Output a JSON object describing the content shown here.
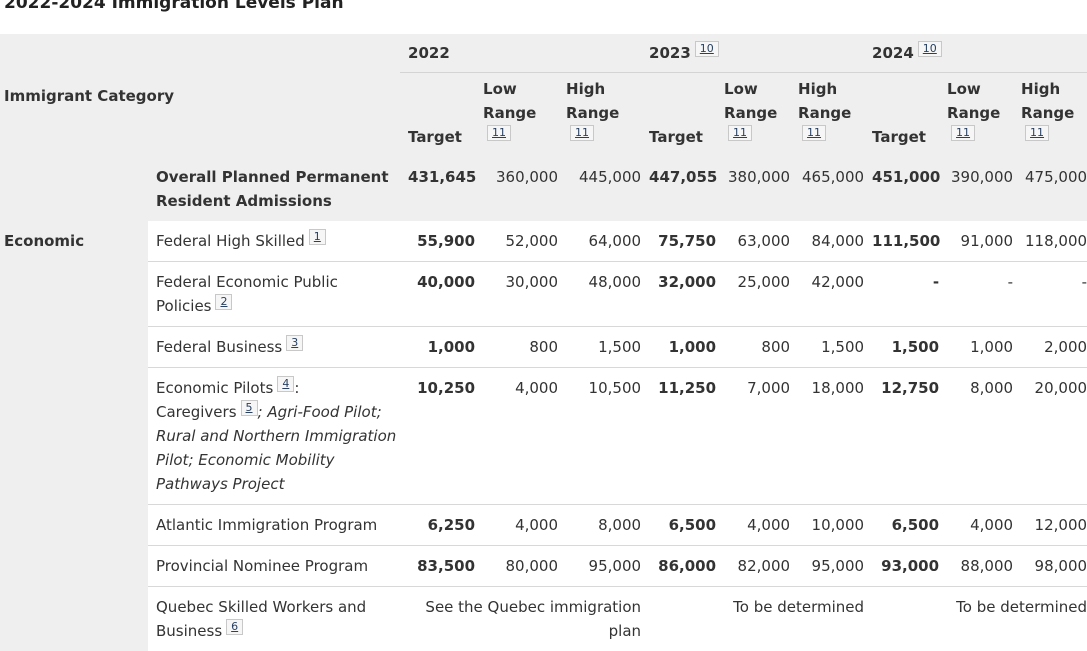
{
  "title": "2022-2024 Immigration Levels Plan",
  "header": {
    "category_label": "Immigrant Category",
    "years": [
      {
        "year": "2022",
        "ref": ""
      },
      {
        "year": "2023",
        "ref": "10"
      },
      {
        "year": "2024",
        "ref": "10"
      }
    ],
    "target_label": "Target",
    "low_label": "Low Range",
    "high_label": "High Range",
    "range_ref": "11"
  },
  "overall": {
    "label": "Overall Planned Permanent Resident Admissions",
    "values": [
      "431,645",
      "360,000",
      "445,000",
      "447,055",
      "380,000",
      "465,000",
      "451,000",
      "390,000",
      "475,000"
    ]
  },
  "category": "Economic",
  "rows": [
    {
      "label": "Federal High Skilled",
      "ref": "1",
      "values": [
        "55,900",
        "52,000",
        "64,000",
        "75,750",
        "63,000",
        "84,000",
        "111,500",
        "91,000",
        "118,000"
      ]
    },
    {
      "label_a": "Federal Economic Public",
      "label_b": "Policies",
      "ref": "2",
      "values": [
        "40,000",
        "30,000",
        "48,000",
        "32,000",
        "25,000",
        "42,000",
        "-",
        "-",
        "-"
      ]
    },
    {
      "label": "Federal Business",
      "ref": "3",
      "values": [
        "1,000",
        "800",
        "1,500",
        "1,000",
        "800",
        "1,500",
        "1,500",
        "1,000",
        "2,000"
      ]
    },
    {
      "label_a": "Economic Pilots",
      "ref_a": "4",
      "label_b": "Caregivers",
      "ref_b": "5",
      "italic": "; Agri-Food Pilot; Rural and Northern Immigration Pilot; Economic Mobility Pathways Project",
      "values": [
        "10,250",
        "4,000",
        "10,500",
        "11,250",
        "7,000",
        "18,000",
        "12,750",
        "8,000",
        "20,000"
      ]
    },
    {
      "label": "Atlantic Immigration Program",
      "values": [
        "6,250",
        "4,000",
        "8,000",
        "6,500",
        "4,000",
        "10,000",
        "6,500",
        "4,000",
        "12,000"
      ]
    },
    {
      "label": "Provincial Nominee Program",
      "values": [
        "83,500",
        "80,000",
        "95,000",
        "86,000",
        "82,000",
        "95,000",
        "93,000",
        "88,000",
        "98,000"
      ]
    }
  ],
  "quebec": {
    "label_a": "Quebec Skilled Workers and",
    "label_b": "Business",
    "ref": "6",
    "y2022": "See the Quebec immigration plan",
    "y2023": "To be determined",
    "y2024": "To be determined"
  }
}
